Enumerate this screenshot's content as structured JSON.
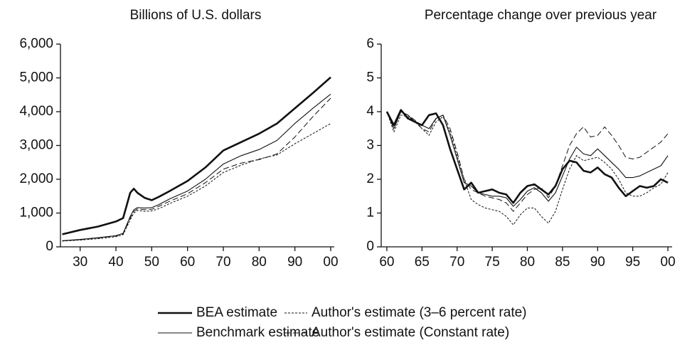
{
  "chart_data": [
    {
      "type": "line",
      "title": "Billions of U.S. dollars",
      "x": [
        1925,
        1930,
        1935,
        1940,
        1942,
        1944,
        1945,
        1946,
        1948,
        1950,
        1952,
        1955,
        1960,
        1965,
        1970,
        1975,
        1980,
        1985,
        1990,
        1995,
        2000
      ],
      "xlim": [
        1924.5,
        2001
      ],
      "xticks": [
        {
          "value": 1930,
          "label": "30"
        },
        {
          "value": 1940,
          "label": "40"
        },
        {
          "value": 1950,
          "label": "50"
        },
        {
          "value": 1960,
          "label": "60"
        },
        {
          "value": 1970,
          "label": "70"
        },
        {
          "value": 1980,
          "label": "80"
        },
        {
          "value": 1990,
          "label": "90"
        },
        {
          "value": 2000,
          "label": "00"
        }
      ],
      "ylim": [
        0,
        6000
      ],
      "yticks": [
        0,
        {
          "value": 1000,
          "label": "1,000"
        },
        {
          "value": 2000,
          "label": "2,000"
        },
        {
          "value": 3000,
          "label": "3,000"
        },
        {
          "value": 4000,
          "label": "4,000"
        },
        {
          "value": 5000,
          "label": "5,000"
        },
        {
          "value": 6000,
          "label": "6,000"
        }
      ],
      "grid": false,
      "series": [
        {
          "name": "BEA estimate",
          "color": "#111111",
          "width": 2.6,
          "dash": "none",
          "values": [
            370,
            500,
            600,
            750,
            850,
            1600,
            1720,
            1600,
            1450,
            1380,
            1480,
            1650,
            1950,
            2350,
            2850,
            3100,
            3350,
            3650,
            4100,
            4550,
            5020
          ]
        },
        {
          "name": "Benchmark estimate",
          "color": "#111111",
          "width": 1.1,
          "dash": "none",
          "values": [
            180,
            220,
            270,
            330,
            400,
            900,
            1100,
            1160,
            1150,
            1160,
            1250,
            1420,
            1650,
            2000,
            2450,
            2700,
            2880,
            3150,
            3650,
            4100,
            4520
          ]
        },
        {
          "name": "Author's estimate (3–6 percent rate)",
          "color": "#111111",
          "width": 1,
          "dash": "3 2",
          "values": [
            170,
            200,
            240,
            300,
            360,
            800,
            1000,
            1080,
            1050,
            1060,
            1130,
            1280,
            1500,
            1800,
            2200,
            2420,
            2600,
            2720,
            3050,
            3350,
            3650
          ]
        },
        {
          "name": "Author's estimate (Constant rate)",
          "color": "#111111",
          "width": 1,
          "dash": "8 4",
          "values": [
            180,
            210,
            260,
            320,
            380,
            850,
            1050,
            1120,
            1100,
            1110,
            1200,
            1350,
            1570,
            1900,
            2300,
            2480,
            2580,
            2750,
            3250,
            3850,
            4400
          ]
        }
      ]
    },
    {
      "type": "line",
      "title": "Percentage change over previous year",
      "x": [
        1960,
        1961,
        1962,
        1963,
        1964,
        1965,
        1966,
        1967,
        1968,
        1969,
        1970,
        1971,
        1972,
        1973,
        1974,
        1975,
        1976,
        1977,
        1978,
        1979,
        1980,
        1981,
        1982,
        1983,
        1984,
        1985,
        1986,
        1987,
        1988,
        1989,
        1990,
        1991,
        1992,
        1993,
        1994,
        1995,
        1996,
        1997,
        1998,
        1999,
        2000
      ],
      "xlim": [
        1959.2,
        2000.6
      ],
      "xticks": [
        {
          "value": 1960,
          "label": "60"
        },
        {
          "value": 1965,
          "label": "65"
        },
        {
          "value": 1970,
          "label": "70"
        },
        {
          "value": 1975,
          "label": "75"
        },
        {
          "value": 1980,
          "label": "80"
        },
        {
          "value": 1985,
          "label": "85"
        },
        {
          "value": 1990,
          "label": "90"
        },
        {
          "value": 1995,
          "label": "95"
        },
        {
          "value": 2000,
          "label": "00"
        }
      ],
      "ylim": [
        0,
        6
      ],
      "yticks": [
        0,
        1,
        2,
        3,
        4,
        5,
        6
      ],
      "grid": false,
      "series": [
        {
          "color": "#111111",
          "width": 2.6,
          "dash": "none",
          "values": [
            4.0,
            3.6,
            4.05,
            3.8,
            3.7,
            3.6,
            3.9,
            3.95,
            3.6,
            2.9,
            2.3,
            1.7,
            1.9,
            1.6,
            1.65,
            1.7,
            1.6,
            1.55,
            1.3,
            1.6,
            1.8,
            1.85,
            1.7,
            1.55,
            1.8,
            2.3,
            2.55,
            2.5,
            2.25,
            2.2,
            2.35,
            2.15,
            2.05,
            1.75,
            1.5,
            1.65,
            1.8,
            1.75,
            1.8,
            2.0,
            1.9
          ]
        },
        {
          "color": "#111111",
          "width": 1.1,
          "dash": "none",
          "values": [
            4.0,
            3.5,
            4.0,
            3.9,
            3.7,
            3.6,
            3.5,
            3.8,
            3.9,
            3.3,
            2.6,
            1.9,
            1.8,
            1.6,
            1.55,
            1.5,
            1.5,
            1.45,
            1.2,
            1.4,
            1.65,
            1.75,
            1.6,
            1.35,
            1.6,
            2.1,
            2.6,
            2.95,
            2.75,
            2.7,
            2.9,
            2.7,
            2.5,
            2.3,
            2.05,
            2.05,
            2.1,
            2.2,
            2.3,
            2.4,
            2.7
          ]
        },
        {
          "color": "#111111",
          "width": 1,
          "dash": "3 2",
          "values": [
            4.0,
            3.4,
            3.9,
            3.85,
            3.7,
            3.5,
            3.3,
            3.7,
            3.85,
            3.4,
            2.7,
            2.0,
            1.4,
            1.25,
            1.15,
            1.1,
            1.05,
            0.9,
            0.65,
            0.95,
            1.15,
            1.15,
            0.9,
            0.7,
            1.05,
            1.7,
            2.3,
            2.7,
            2.55,
            2.6,
            2.65,
            2.5,
            2.3,
            2.0,
            1.6,
            1.5,
            1.5,
            1.6,
            1.75,
            1.85,
            2.2
          ]
        },
        {
          "color": "#111111",
          "width": 1,
          "dash": "8 4",
          "values": [
            4.0,
            3.6,
            4.0,
            3.9,
            3.75,
            3.5,
            3.4,
            3.8,
            3.9,
            3.5,
            2.8,
            2.0,
            1.7,
            1.6,
            1.5,
            1.45,
            1.4,
            1.3,
            1.05,
            1.3,
            1.55,
            1.7,
            1.75,
            1.45,
            1.8,
            2.4,
            3.0,
            3.35,
            3.55,
            3.25,
            3.3,
            3.55,
            3.3,
            3.0,
            2.65,
            2.6,
            2.65,
            2.8,
            2.95,
            3.1,
            3.35
          ]
        }
      ]
    }
  ]
}
